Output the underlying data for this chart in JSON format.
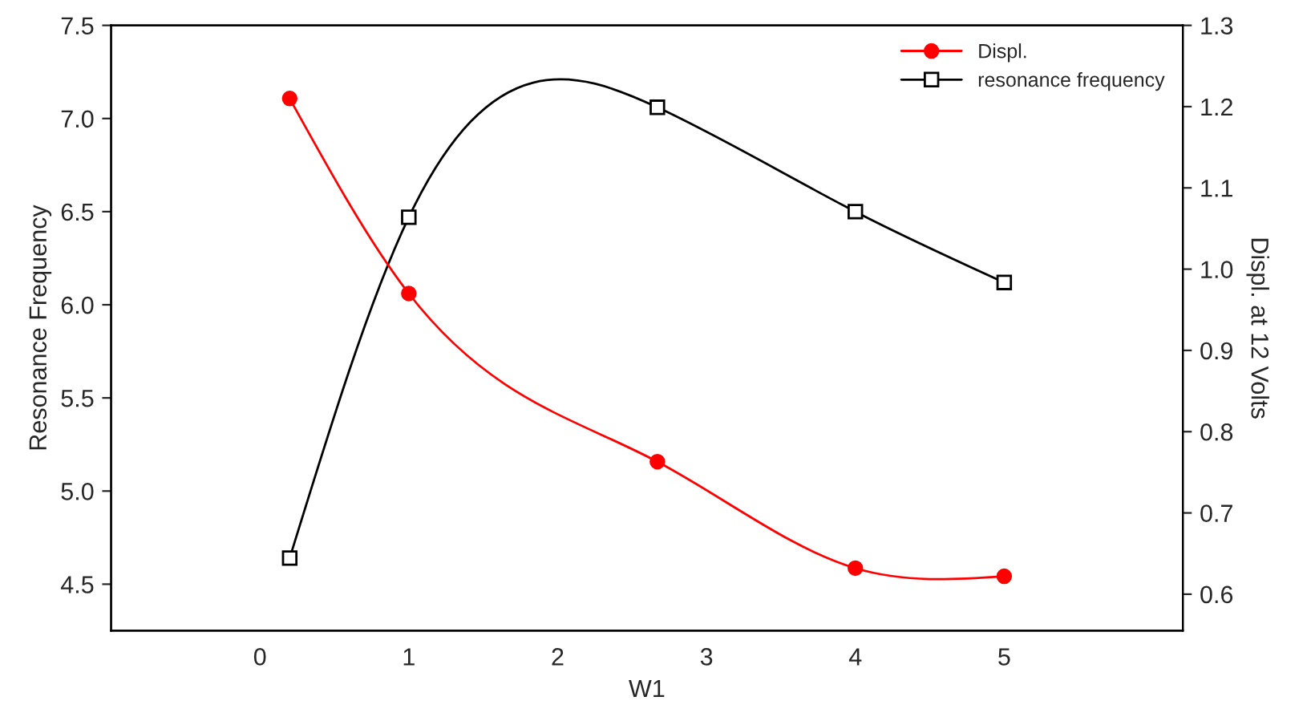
{
  "chart_data": {
    "type": "line",
    "xlabel": "W1",
    "ylabel": "Resonance Frequency",
    "y2label": "Displ. at 12 Volts",
    "xlim": [
      -1,
      6.2
    ],
    "xticks": [
      0,
      1,
      2,
      3,
      4,
      5
    ],
    "ylim": [
      4.25,
      7.5
    ],
    "yticks": [
      4.5,
      {
        "value": 5,
        "label": "5.0"
      },
      5.5,
      {
        "value": 6,
        "label": "6.0"
      },
      6.5,
      {
        "value": 7,
        "label": "7.0"
      },
      7.5
    ],
    "y2lim": [
      0.555,
      1.3
    ],
    "y2ticks": [
      0.6,
      0.7,
      0.8,
      0.9,
      {
        "value": 1,
        "label": "1.0"
      },
      1.1,
      1.2,
      1.3
    ],
    "legend": "top right",
    "grid": false,
    "series": [
      {
        "name": "Displ.",
        "color": "#ff0000",
        "axis": "y2",
        "marker": "circle",
        "x": [
          0.2,
          1,
          2.67,
          4,
          5
        ],
        "values": [
          1.21,
          0.97,
          0.763,
          0.632,
          0.622
        ]
      },
      {
        "name": "resonance frequency",
        "color": "#000000",
        "axis": "y",
        "marker": "square",
        "x": [
          0.2,
          1,
          2.67,
          4,
          5
        ],
        "values": [
          4.64,
          6.47,
          7.06,
          6.5,
          6.12
        ]
      }
    ]
  }
}
